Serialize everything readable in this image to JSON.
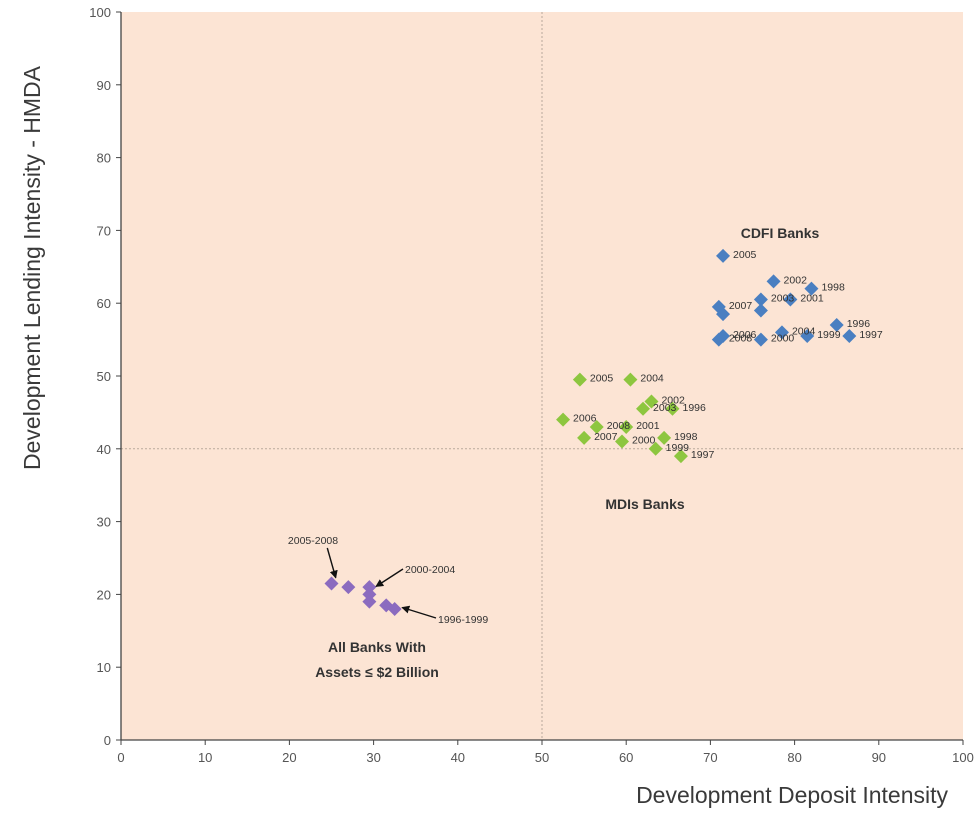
{
  "chart_data": {
    "type": "scatter",
    "xlabel": "Development Deposit Intensity",
    "ylabel": "Development Lending Intensity - HMDA",
    "xlim": [
      0,
      100
    ],
    "ylim": [
      0,
      100
    ],
    "x_ticks": [
      "0",
      "10",
      "20",
      "30",
      "40",
      "50",
      "60",
      "70",
      "80",
      "90",
      "100"
    ],
    "y_ticks": [
      "0",
      "10",
      "20",
      "30",
      "40",
      "50",
      "60",
      "70",
      "80",
      "90",
      "100"
    ],
    "reference_lines": {
      "x": 50,
      "y": 40
    },
    "plot_background": "#fce4d4",
    "series": [
      {
        "name": "CDFI Banks",
        "color": "#4a7fc1",
        "points": [
          {
            "x": 71.5,
            "y": 66.5,
            "label": "2005"
          },
          {
            "x": 77.5,
            "y": 63,
            "label": "2002"
          },
          {
            "x": 82,
            "y": 62,
            "label": "1998"
          },
          {
            "x": 76,
            "y": 60.5,
            "label": "2003"
          },
          {
            "x": 79.5,
            "y": 60.5,
            "label": "2001"
          },
          {
            "x": 71,
            "y": 59.5,
            "label": "2007"
          },
          {
            "x": 76,
            "y": 59,
            "label": ""
          },
          {
            "x": 71.5,
            "y": 58.5,
            "label": ""
          },
          {
            "x": 85,
            "y": 57,
            "label": "1996"
          },
          {
            "x": 78.5,
            "y": 56,
            "label": "2004"
          },
          {
            "x": 71.5,
            "y": 55.5,
            "label": "2006"
          },
          {
            "x": 81.5,
            "y": 55.5,
            "label": "1999"
          },
          {
            "x": 86.5,
            "y": 55.5,
            "label": "1997"
          },
          {
            "x": 71,
            "y": 55,
            "label": "2008"
          },
          {
            "x": 76,
            "y": 55,
            "label": "2000"
          }
        ]
      },
      {
        "name": "MDIs Banks",
        "color": "#8dc63f",
        "points": [
          {
            "x": 54.5,
            "y": 49.5,
            "label": "2005"
          },
          {
            "x": 60.5,
            "y": 49.5,
            "label": "2004"
          },
          {
            "x": 63,
            "y": 46.5,
            "label": "2002"
          },
          {
            "x": 62,
            "y": 45.5,
            "label": "2003"
          },
          {
            "x": 65.5,
            "y": 45.5,
            "label": "1996"
          },
          {
            "x": 52.5,
            "y": 44,
            "label": "2006"
          },
          {
            "x": 56.5,
            "y": 43,
            "label": "2008"
          },
          {
            "x": 60,
            "y": 43,
            "label": "2001"
          },
          {
            "x": 55,
            "y": 41.5,
            "label": "2007"
          },
          {
            "x": 64.5,
            "y": 41.5,
            "label": "1998"
          },
          {
            "x": 59.5,
            "y": 41,
            "label": "2000"
          },
          {
            "x": 63.5,
            "y": 40,
            "label": "1999"
          },
          {
            "x": 66.5,
            "y": 39,
            "label": "1997"
          }
        ]
      },
      {
        "name": "All Banks With Assets ≤ $2 Billion",
        "color": "#8b6bbf",
        "points": [
          {
            "x": 25,
            "y": 21.5
          },
          {
            "x": 27,
            "y": 21
          },
          {
            "x": 29.5,
            "y": 21
          },
          {
            "x": 29.5,
            "y": 20
          },
          {
            "x": 29.5,
            "y": 19
          },
          {
            "x": 31.5,
            "y": 18.5
          },
          {
            "x": 32.5,
            "y": 18
          }
        ]
      }
    ],
    "annotations": {
      "cdfi": "CDFI Banks",
      "mdi": "MDIs Banks",
      "all_banks_line1": "All Banks With",
      "all_banks_line2": "Assets ≤ $2 Billion",
      "arrow_2005_2008": "2005-2008",
      "arrow_2000_2004": "2000-2004",
      "arrow_1996_1999": "1996-1999"
    }
  }
}
